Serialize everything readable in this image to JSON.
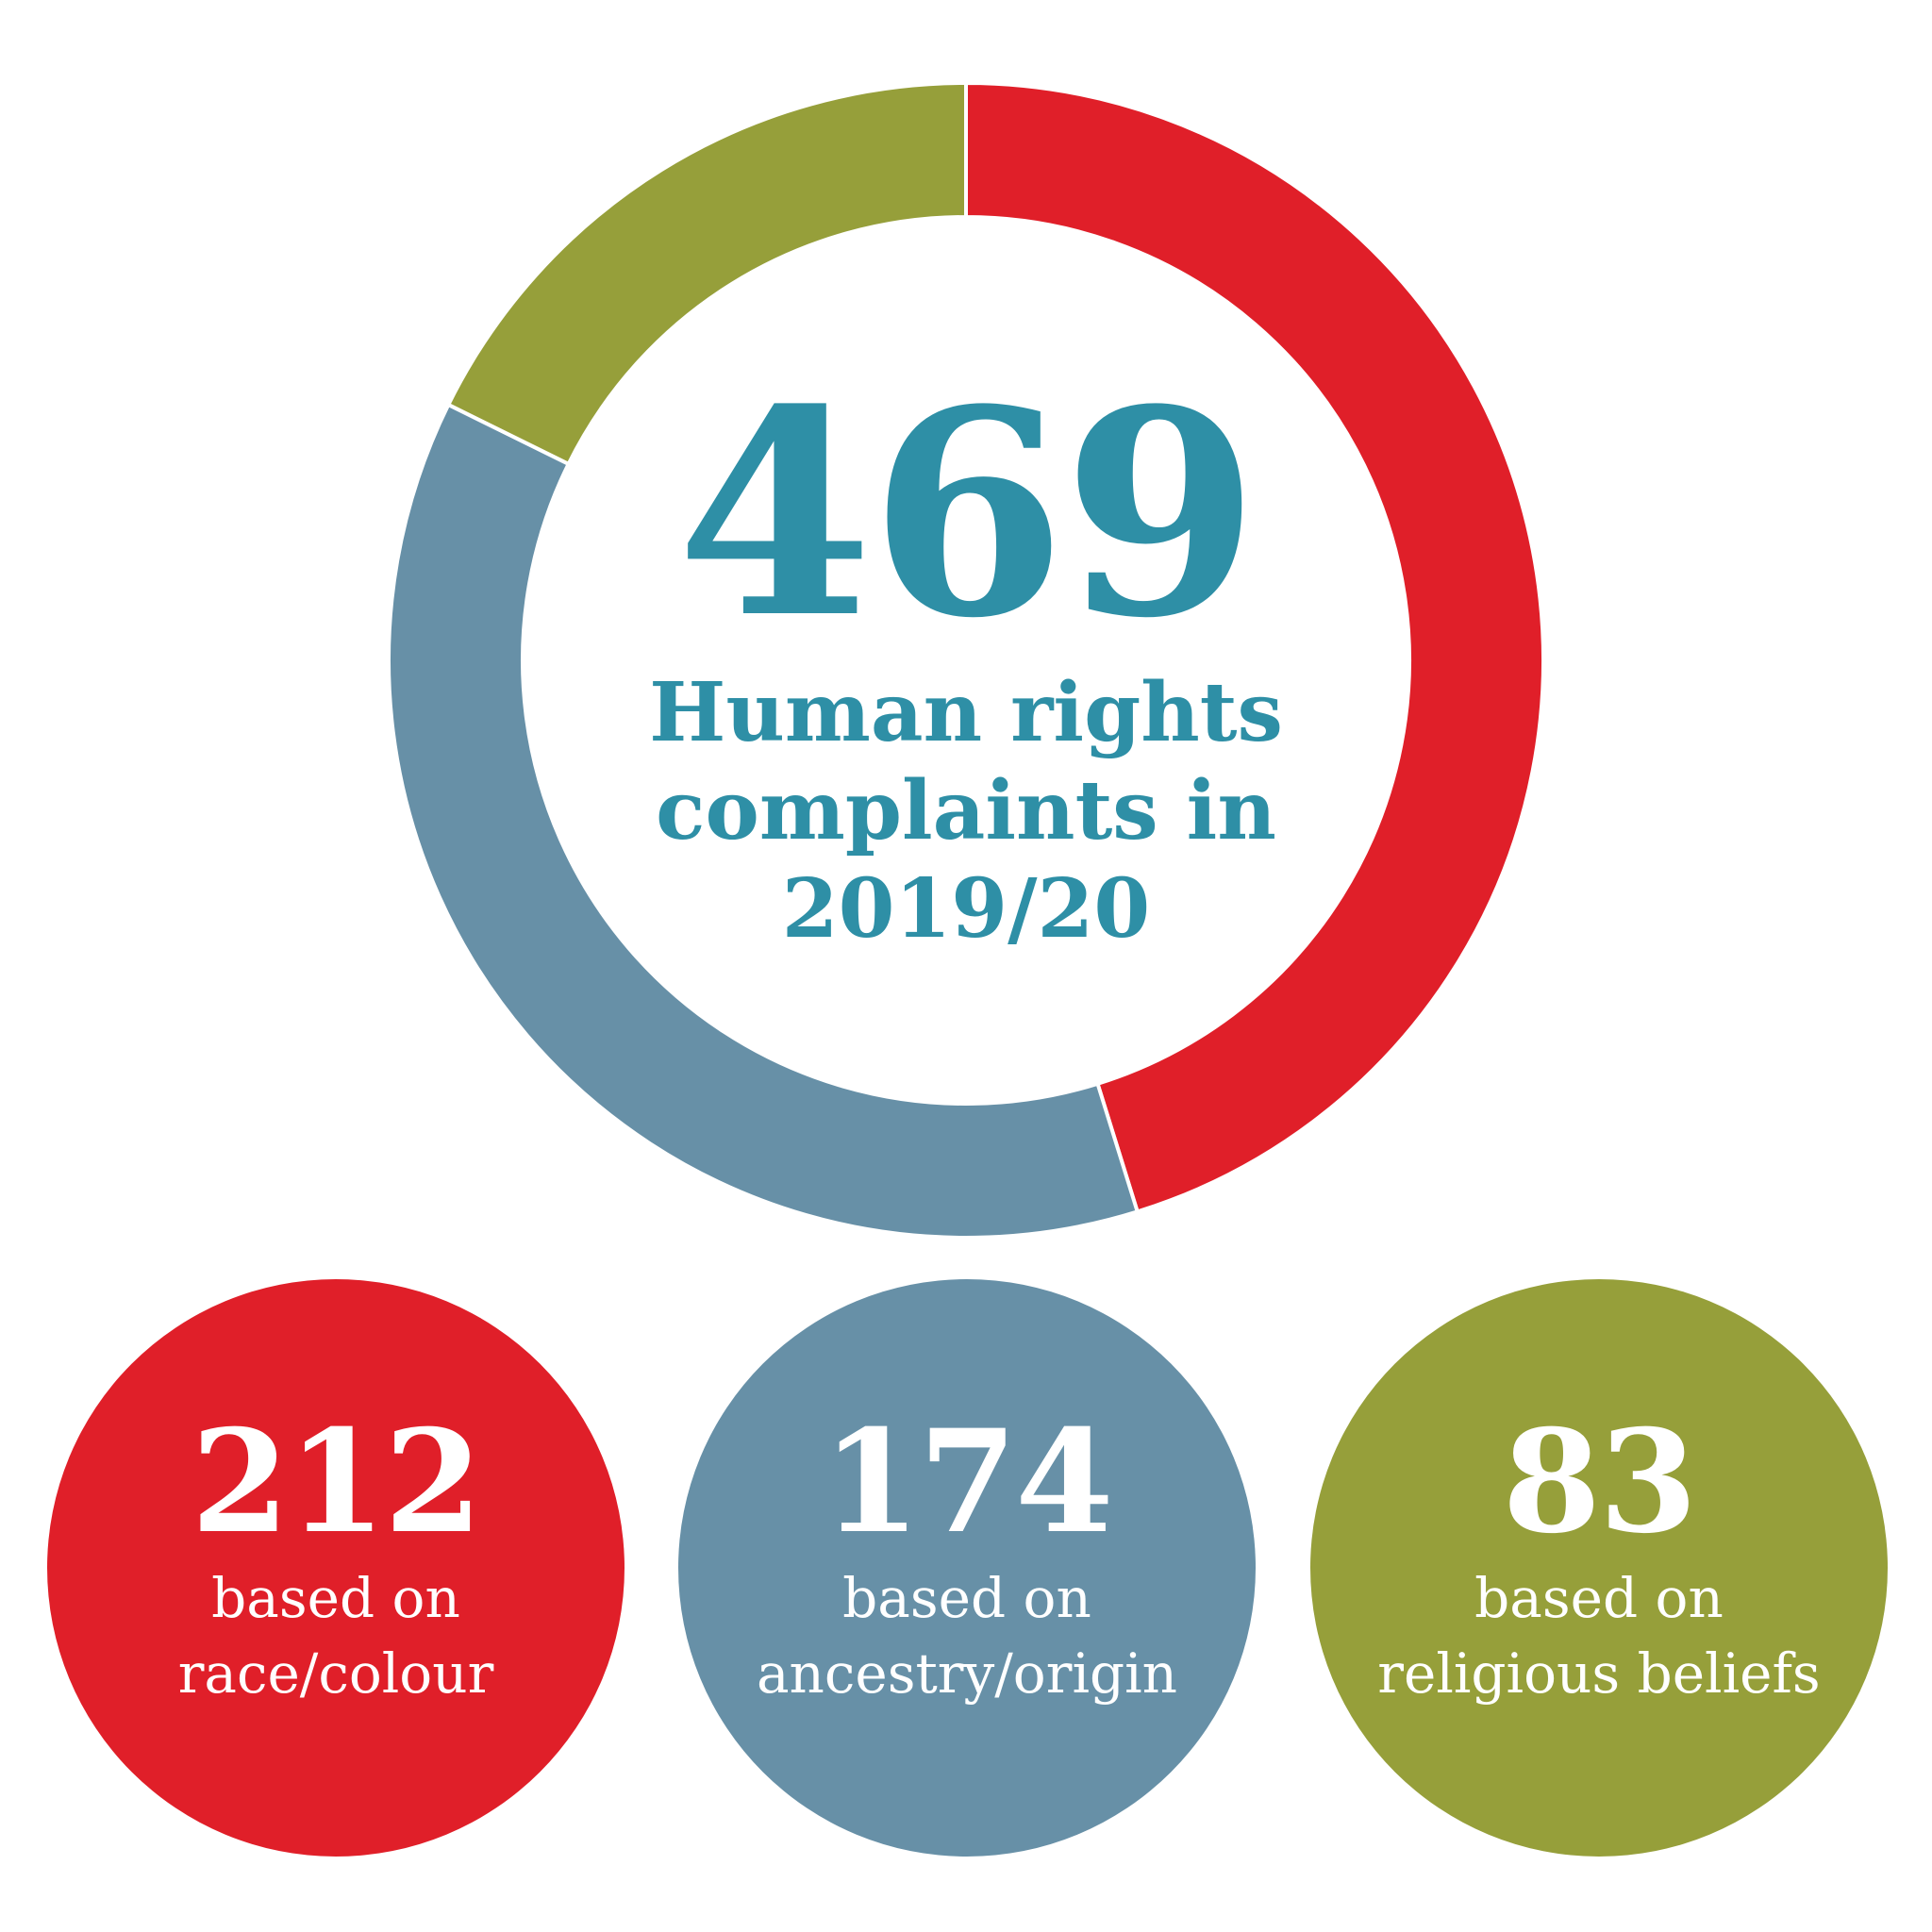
{
  "colors": {
    "race": "#e01f29",
    "ancestry": "#6790a7",
    "religious": "#969f3a",
    "center_text": "#2e8fa6"
  },
  "center": {
    "total": "469",
    "caption_line1": "Human rights",
    "caption_line2": "complaints in",
    "caption_line3": "2019/20"
  },
  "chart_data": {
    "type": "pie",
    "variant": "donut",
    "total": 469,
    "series": [
      {
        "name": "race/colour",
        "value": 212,
        "color": "#e01f29"
      },
      {
        "name": "ancestry/origin",
        "value": 174,
        "color": "#6790a7"
      },
      {
        "name": "religious beliefs",
        "value": 83,
        "color": "#969f3a"
      }
    ]
  },
  "stats": [
    {
      "number": "212",
      "line1": "based on",
      "line2": "race/colour",
      "color": "#e01f29"
    },
    {
      "number": "174",
      "line1": "based on",
      "line2": "ancestry/origin",
      "color": "#6790a7"
    },
    {
      "number": "83",
      "line1": "based on",
      "line2": "religious beliefs",
      "color": "#969f3a"
    }
  ]
}
